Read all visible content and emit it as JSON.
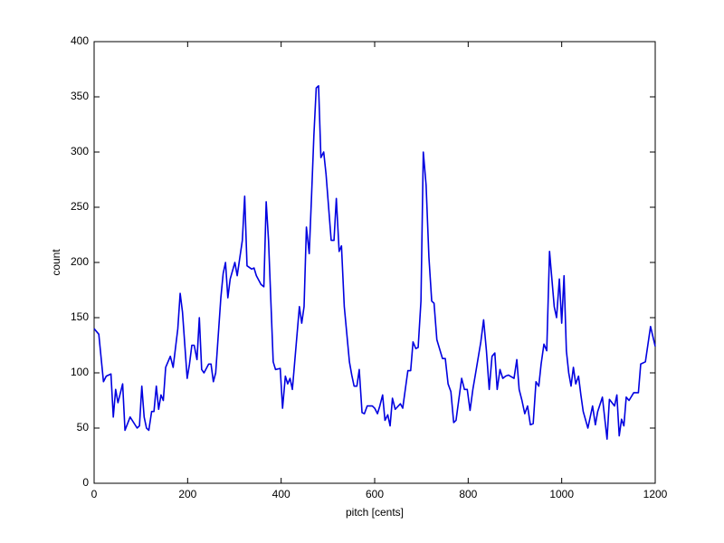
{
  "chart_data": {
    "type": "line",
    "xlabel": "pitch [cents]",
    "ylabel": "count",
    "xlim": [
      0,
      1200
    ],
    "ylim": [
      0,
      400
    ],
    "xticks": [
      0,
      200,
      400,
      600,
      800,
      1000,
      1200
    ],
    "yticks": [
      0,
      50,
      100,
      150,
      200,
      250,
      300,
      350,
      400
    ],
    "grid": false,
    "x": [
      0,
      10,
      20,
      26,
      36,
      41,
      46,
      51,
      61,
      66,
      77,
      92,
      97,
      102,
      107,
      112,
      117,
      123,
      128,
      133,
      138,
      143,
      148,
      153,
      163,
      169,
      179,
      184,
      189,
      199,
      204,
      209,
      214,
      220,
      225,
      230,
      235,
      245,
      250,
      255,
      260,
      271,
      276,
      281,
      286,
      291,
      301,
      306,
      317,
      322,
      327,
      337,
      342,
      347,
      357,
      363,
      368,
      373,
      378,
      383,
      388,
      398,
      403,
      409,
      414,
      419,
      424,
      429,
      439,
      444,
      449,
      454,
      460,
      465,
      470,
      475,
      480,
      485,
      491,
      496,
      507,
      513,
      518,
      524,
      529,
      535,
      546,
      551,
      556,
      562,
      567,
      573,
      578,
      584,
      595,
      600,
      606,
      611,
      617,
      622,
      628,
      633,
      638,
      644,
      655,
      660,
      671,
      677,
      682,
      688,
      693,
      699,
      704,
      710,
      716,
      722,
      727,
      733,
      745,
      751,
      757,
      763,
      769,
      774,
      786,
      792,
      798,
      804,
      810,
      816,
      827,
      833,
      839,
      845,
      851,
      857,
      862,
      868,
      874,
      880,
      886,
      898,
      904,
      909,
      915,
      921,
      927,
      933,
      939,
      945,
      951,
      956,
      962,
      968,
      974,
      979,
      984,
      989,
      995,
      1000,
      1005,
      1010,
      1015,
      1020,
      1025,
      1030,
      1036,
      1041,
      1046,
      1056,
      1066,
      1072,
      1077,
      1087,
      1097,
      1102,
      1113,
      1118,
      1123,
      1128,
      1133,
      1138,
      1144,
      1154,
      1164,
      1169,
      1179,
      1190,
      1200
    ],
    "series": [
      {
        "name": "count",
        "color": "#0000e0",
        "values": [
          140,
          135,
          92,
          97,
          99,
          60,
          85,
          73,
          90,
          48,
          60,
          50,
          52,
          88,
          60,
          50,
          48,
          65,
          65,
          88,
          67,
          80,
          75,
          105,
          115,
          105,
          140,
          172,
          155,
          95,
          108,
          125,
          125,
          112,
          150,
          103,
          100,
          108,
          108,
          92,
          100,
          168,
          190,
          200,
          168,
          185,
          200,
          188,
          220,
          260,
          197,
          194,
          195,
          188,
          180,
          178,
          255,
          220,
          165,
          110,
          103,
          104,
          68,
          97,
          90,
          95,
          85,
          110,
          160,
          145,
          160,
          232,
          208,
          260,
          315,
          358,
          360,
          295,
          300,
          280,
          220,
          220,
          258,
          210,
          215,
          160,
          110,
          98,
          88,
          88,
          103,
          64,
          63,
          70,
          70,
          68,
          63,
          70,
          80,
          57,
          62,
          52,
          77,
          67,
          72,
          68,
          102,
          102,
          128,
          122,
          123,
          165,
          300,
          270,
          205,
          165,
          163,
          130,
          113,
          113,
          90,
          83,
          55,
          57,
          95,
          85,
          85,
          66,
          85,
          100,
          128,
          148,
          120,
          85,
          115,
          118,
          85,
          103,
          95,
          97,
          98,
          95,
          112,
          85,
          75,
          63,
          70,
          53,
          54,
          92,
          88,
          108,
          126,
          120,
          210,
          185,
          160,
          150,
          185,
          145,
          188,
          120,
          100,
          88,
          105,
          90,
          97,
          80,
          65,
          50,
          70,
          53,
          65,
          78,
          40,
          76,
          70,
          80,
          43,
          58,
          52,
          78,
          75,
          82,
          82,
          108,
          110,
          142,
          124
        ]
      }
    ]
  }
}
